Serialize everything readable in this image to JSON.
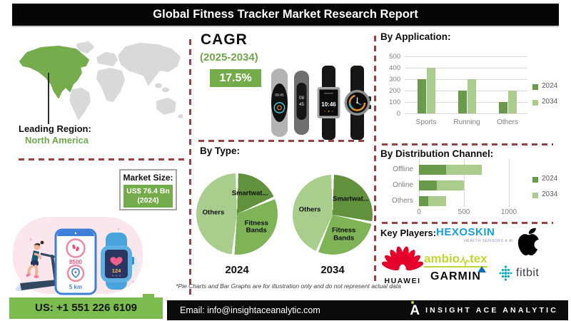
{
  "header": {
    "title": "Global Fitness Tracker Market Research Report"
  },
  "leading_region": {
    "label": "Leading Region:",
    "value": "North America"
  },
  "market_size": {
    "label": "Market Size:",
    "value": "US$ 76.4 Bn",
    "year": "(2024)"
  },
  "cagr": {
    "label": "CAGR",
    "period": "(2025-2034)",
    "value": "17.5%"
  },
  "devices": {
    "band1_time": "08:45",
    "band2_time_top": "08",
    "band2_time_bottom": "45",
    "square_watch_time": "10:46"
  },
  "illustration": {
    "steps": "8500",
    "distance": "5 km",
    "heart_rate": "124"
  },
  "footnote": "*Pie Charts and Bar Graphs are for illustration only and do not represent actual data",
  "key_players": {
    "label": "Key Players:",
    "hexoskin": {
      "name": "HEXOSKIN",
      "tagline": "HEALTH SENSORS & AI"
    },
    "apple": {
      "icon": "apple-logo"
    },
    "huawei": {
      "name": "HUAWEI"
    },
    "ambiotex": {
      "name_left": "ambio",
      "name_right": "tex"
    },
    "garmin": {
      "name": "GARMIN",
      "trademark": "™"
    },
    "fitbit": {
      "name": "fitbit"
    }
  },
  "footer": {
    "phone": "US: +1 551 226 6109",
    "email": "Email: info@insightaceanalytic.com",
    "brand_mark": "A",
    "brand": "INSIGHT ACE ANALYTIC"
  },
  "colors": {
    "accent_green": "#75ac4b",
    "footer_green": "#7cbb4d",
    "dashed_divider": "#9a4141",
    "map_region_green": "#76ad4c",
    "map_gray": "#d9d9d9",
    "series_2024": "#6a9b4d",
    "series_2034": "#aacd8e",
    "hexoskin_blue": "#149fd9",
    "huawei_red": "#e4002b",
    "ambiotex_lime": "#c3d630",
    "garmin_triangle_blue": "#0a6cb5",
    "fitbit_teal": "#00b0b9"
  },
  "chart_data": [
    {
      "id": "by_application",
      "type": "bar",
      "title": "By Application:",
      "categories": [
        "Sports",
        "Running",
        "Others"
      ],
      "series": [
        {
          "name": "2024",
          "color": "#6a9b4d",
          "values": [
            300,
            200,
            100
          ]
        },
        {
          "name": "2034",
          "color": "#aacd8e",
          "values": [
            400,
            300,
            200
          ]
        }
      ],
      "ylim": [
        0,
        500
      ],
      "yticks": [
        0,
        100,
        200,
        300,
        400,
        500
      ],
      "grid": true,
      "legend_position": "right"
    },
    {
      "id": "by_distribution_channel",
      "type": "bar-horizontal-stacked",
      "title": "By Distribution Channel:",
      "categories": [
        "Offline",
        "Online",
        "Others"
      ],
      "series": [
        {
          "name": "2024",
          "color": "#6a9b4d",
          "values": [
            300,
            200,
            100
          ]
        },
        {
          "name": "2034",
          "color": "#aacd8e",
          "values": [
            400,
            300,
            200
          ]
        }
      ],
      "xlim": [
        0,
        1450
      ],
      "xticks": [
        0,
        500,
        1000
      ],
      "grid": true,
      "legend_position": "right"
    },
    {
      "id": "by_type",
      "type": "pie",
      "title": "By Type:",
      "pies": [
        {
          "year": "2024",
          "slices": [
            {
              "label": "Smartwat...",
              "value": 18,
              "color": "#61913d"
            },
            {
              "label": "Fitness Bands",
              "value": 33,
              "color": "#7eb356"
            },
            {
              "label": "Others",
              "value": 49,
              "color": "#a9cd8d"
            }
          ]
        },
        {
          "year": "2034",
          "slices": [
            {
              "label": "Smartwat...",
              "value": 28,
              "color": "#61913d"
            },
            {
              "label": "Fitness Bands",
              "value": 28,
              "color": "#7eb356"
            },
            {
              "label": "Others",
              "value": 44,
              "color": "#a9cd8d"
            }
          ]
        }
      ]
    }
  ]
}
